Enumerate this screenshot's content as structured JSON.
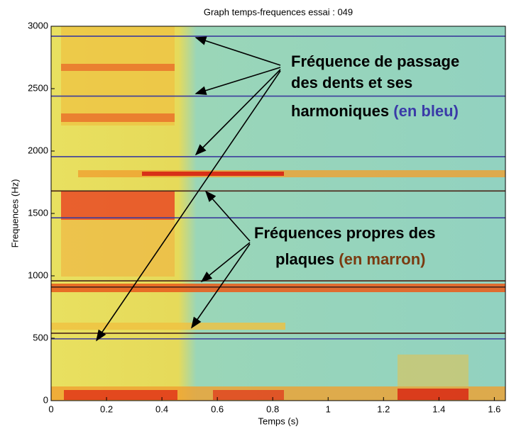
{
  "chart_data": {
    "type": "spectrogram",
    "title": "Graph temps-frequences  essai : 049",
    "x_label": "Temps (s)",
    "y_label": "Frequences (Hz)",
    "xlim": [
      0,
      1.64
    ],
    "ylim": [
      0,
      3000
    ],
    "xticks": [
      0,
      0.2,
      0.4,
      0.6,
      0.8,
      1,
      1.2,
      1.4,
      1.6
    ],
    "yticks": [
      0,
      500,
      1000,
      1500,
      2000,
      2500,
      3000
    ],
    "reference_lines": [
      {
        "color": "#3c3c9c",
        "values": [
          2920,
          2440,
          1955,
          1465,
          495
        ]
      },
      {
        "color": "#4a2418",
        "values": [
          1680,
          960,
          910,
          540
        ]
      }
    ],
    "annotations": [
      {
        "lines": [
          "Fréquence de passage",
          "des dents et ses",
          "harmoniques"
        ],
        "note": "(en bleu)",
        "note_color": "#3a3aa8"
      },
      {
        "lines": [
          "Fréquences propres des",
          "plaques"
        ],
        "note": "(en marron)",
        "note_color": "#7a3a10"
      }
    ]
  }
}
